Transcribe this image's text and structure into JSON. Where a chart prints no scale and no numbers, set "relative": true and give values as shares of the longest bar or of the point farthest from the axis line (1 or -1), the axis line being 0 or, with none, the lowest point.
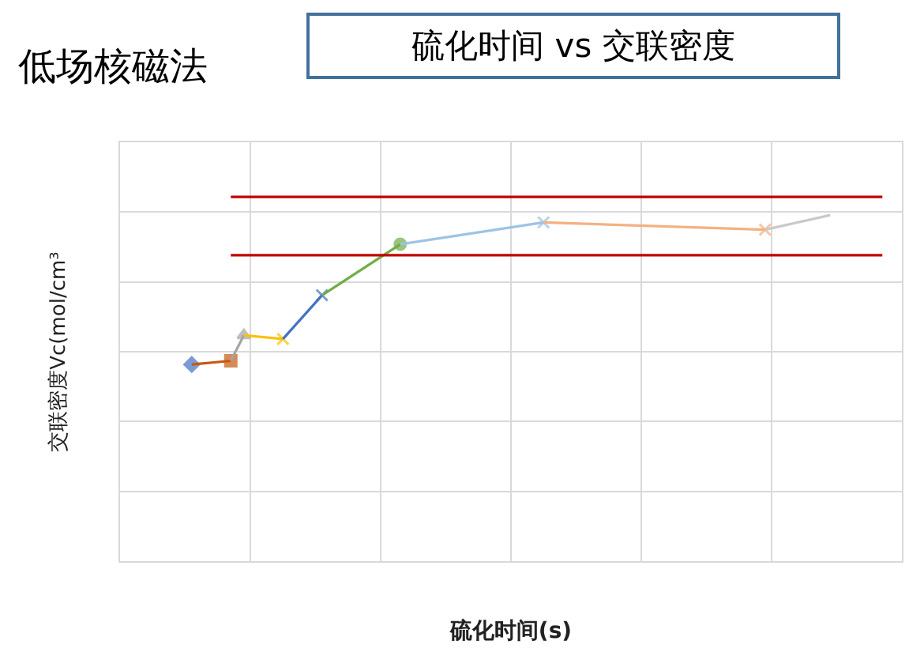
{
  "chart_data": {
    "type": "line",
    "title": "低场核磁法",
    "subtitle": "硫化时间 vs 交联密度",
    "xlabel": "硫化时间(s)",
    "ylabel": "交联密度Vc(mol/cm³",
    "relative": true,
    "categories": [
      null,
      null,
      null,
      null,
      null,
      null,
      null,
      null,
      null,
      null,
      null,
      null,
      null,
      null,
      null,
      null,
      null,
      null,
      null,
      null,
      null,
      null,
      null,
      null,
      null,
      null,
      null,
      null,
      null,
      null,
      null,
      null,
      null,
      null,
      null,
      null,
      null,
      null,
      null,
      null,
      null,
      null,
      null,
      null,
      null,
      null,
      null,
      null,
      null,
      null,
      null,
      null,
      null,
      null,
      null,
      null,
      null,
      null,
      null,
      null
    ],
    "tick_labels": false,
    "grid": true,
    "series": [
      {
        "color": "#4472c4",
        "marker": "diamond",
        "values": [
          null,
          null,
          null,
          null,
          null,
          0.54,
          null,
          null,
          null,
          null,
          null,
          null,
          null,
          null,
          null,
          null,
          null,
          null,
          null,
          null,
          null,
          null,
          null,
          null,
          null,
          null,
          null,
          null,
          null,
          null,
          null,
          null,
          null,
          null,
          null,
          null,
          null,
          null,
          null,
          null,
          null,
          null,
          null,
          null,
          null,
          null,
          null,
          null,
          null,
          null,
          null,
          null,
          null,
          null,
          null,
          null,
          null,
          null,
          null,
          null
        ]
      },
      {
        "color": "#c55a11",
        "marker": "square",
        "values": [
          null,
          null,
          null,
          null,
          null,
          0.54,
          null,
          null,
          0.55,
          null,
          null,
          null,
          null,
          null,
          null,
          null,
          null,
          null,
          null,
          null,
          null,
          null,
          null,
          null,
          null,
          null,
          null,
          null,
          null,
          null,
          null,
          null,
          null,
          null,
          null,
          null,
          null,
          null,
          null,
          null,
          null,
          null,
          null,
          null,
          null,
          null,
          null,
          null,
          null,
          null,
          null,
          null,
          null,
          null,
          null,
          null,
          null,
          null,
          null,
          null
        ]
      },
      {
        "color": "#a5a5a5",
        "marker": "triangle",
        "values": [
          null,
          null,
          null,
          null,
          null,
          null,
          null,
          null,
          0.55,
          0.62,
          null,
          null,
          null,
          null,
          null,
          null,
          null,
          null,
          null,
          null,
          null,
          null,
          null,
          null,
          null,
          null,
          null,
          null,
          null,
          null,
          null,
          null,
          null,
          null,
          null,
          null,
          null,
          null,
          null,
          null,
          null,
          null,
          null,
          null,
          null,
          null,
          null,
          null,
          null,
          null,
          null,
          null,
          null,
          null,
          null,
          null,
          null,
          null,
          null,
          null
        ]
      },
      {
        "color": "#ffc000",
        "marker": "cross",
        "values": [
          null,
          null,
          null,
          null,
          null,
          null,
          null,
          null,
          null,
          0.62,
          null,
          null,
          0.61,
          null,
          null,
          null,
          null,
          null,
          null,
          null,
          null,
          null,
          null,
          null,
          null,
          null,
          null,
          null,
          null,
          null,
          null,
          null,
          null,
          null,
          null,
          null,
          null,
          null,
          null,
          null,
          null,
          null,
          null,
          null,
          null,
          null,
          null,
          null,
          null,
          null,
          null,
          null,
          null,
          null,
          null,
          null,
          null,
          null,
          null,
          null
        ]
      },
      {
        "color": "#4472c4",
        "marker": "cross",
        "values": [
          null,
          null,
          null,
          null,
          null,
          null,
          null,
          null,
          null,
          null,
          null,
          null,
          0.61,
          null,
          null,
          0.73,
          null,
          null,
          null,
          null,
          null,
          null,
          null,
          null,
          null,
          null,
          null,
          null,
          null,
          null,
          null,
          null,
          null,
          null,
          null,
          null,
          null,
          null,
          null,
          null,
          null,
          null,
          null,
          null,
          null,
          null,
          null,
          null,
          null,
          null,
          null,
          null,
          null,
          null,
          null,
          null,
          null,
          null,
          null,
          null
        ]
      },
      {
        "color": "#70ad47",
        "marker": "circle",
        "values": [
          null,
          null,
          null,
          null,
          null,
          null,
          null,
          null,
          null,
          null,
          null,
          null,
          null,
          null,
          null,
          0.73,
          null,
          null,
          null,
          null,
          null,
          0.87,
          null,
          null,
          null,
          null,
          null,
          null,
          null,
          null,
          null,
          null,
          null,
          null,
          null,
          null,
          null,
          null,
          null,
          null,
          null,
          null,
          null,
          null,
          null,
          null,
          null,
          null,
          null,
          null,
          null,
          null,
          null,
          null,
          null,
          null,
          null,
          null,
          null,
          null
        ]
      },
      {
        "color": "#9dc3e6",
        "marker": "cross",
        "values": [
          null,
          null,
          null,
          null,
          null,
          null,
          null,
          null,
          null,
          null,
          null,
          null,
          null,
          null,
          null,
          null,
          null,
          null,
          null,
          null,
          null,
          0.87,
          null,
          null,
          null,
          null,
          null,
          null,
          null,
          null,
          null,
          null,
          0.93,
          null,
          null,
          null,
          null,
          null,
          null,
          null,
          null,
          null,
          null,
          null,
          null,
          null,
          null,
          null,
          null,
          null,
          null,
          null,
          null,
          null,
          null,
          null,
          null,
          null,
          null,
          null
        ]
      },
      {
        "color": "#f4b183",
        "marker": "cross",
        "values": [
          null,
          null,
          null,
          null,
          null,
          null,
          null,
          null,
          null,
          null,
          null,
          null,
          null,
          null,
          null,
          null,
          null,
          null,
          null,
          null,
          null,
          null,
          null,
          null,
          null,
          null,
          null,
          null,
          null,
          null,
          null,
          null,
          0.93,
          null,
          null,
          null,
          null,
          null,
          null,
          null,
          null,
          null,
          null,
          null,
          null,
          null,
          null,
          null,
          null,
          0.91,
          null,
          null,
          null,
          null,
          null,
          null,
          null,
          null,
          null,
          null
        ]
      },
      {
        "color": "#c9c9c9",
        "marker": "none",
        "values": [
          null,
          null,
          null,
          null,
          null,
          null,
          null,
          null,
          null,
          null,
          null,
          null,
          null,
          null,
          null,
          null,
          null,
          null,
          null,
          null,
          null,
          null,
          null,
          null,
          null,
          null,
          null,
          null,
          null,
          null,
          null,
          null,
          null,
          null,
          null,
          null,
          null,
          null,
          null,
          null,
          null,
          null,
          null,
          null,
          null,
          null,
          null,
          null,
          null,
          0.91,
          null,
          null,
          null,
          null,
          0.95,
          null,
          null,
          null,
          null,
          null
        ]
      },
      {
        "color": "#c00000",
        "marker": "none",
        "values": [
          null,
          null,
          null,
          null,
          null,
          null,
          null,
          null,
          1,
          null,
          null,
          null,
          null,
          null,
          null,
          null,
          null,
          null,
          null,
          null,
          null,
          null,
          null,
          null,
          null,
          null,
          null,
          null,
          null,
          null,
          null,
          null,
          null,
          null,
          null,
          null,
          null,
          null,
          null,
          null,
          null,
          null,
          null,
          null,
          null,
          null,
          null,
          null,
          null,
          null,
          null,
          null,
          null,
          null,
          null,
          null,
          null,
          null,
          1,
          null
        ]
      },
      {
        "color": "#c00000",
        "marker": "none",
        "values": [
          null,
          null,
          null,
          null,
          null,
          null,
          null,
          null,
          0.84,
          null,
          null,
          null,
          null,
          null,
          null,
          null,
          null,
          null,
          null,
          null,
          null,
          null,
          null,
          null,
          null,
          null,
          null,
          null,
          null,
          null,
          null,
          null,
          null,
          null,
          null,
          null,
          null,
          null,
          null,
          null,
          null,
          null,
          null,
          null,
          null,
          null,
          null,
          null,
          null,
          null,
          null,
          null,
          null,
          null,
          null,
          null,
          null,
          null,
          0.84,
          null
        ]
      }
    ]
  }
}
